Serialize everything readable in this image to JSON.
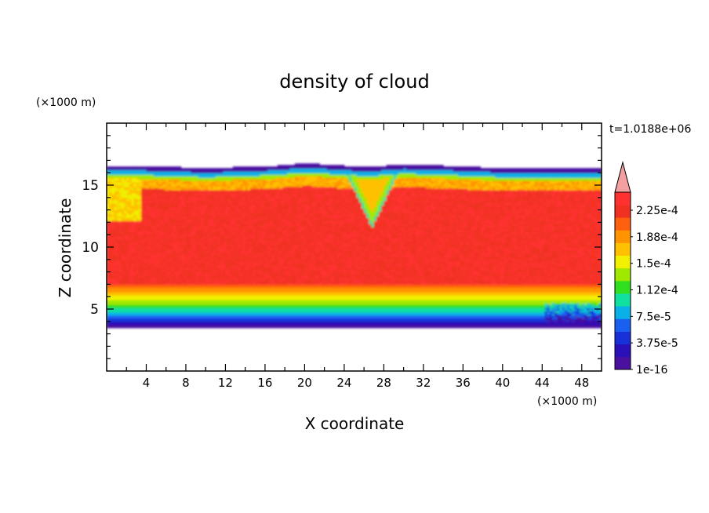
{
  "chart_data": {
    "type": "heatmap",
    "title": "density of cloud",
    "xlabel": "X coordinate",
    "ylabel": "Z coordinate",
    "x_unit": "(×1000 m)",
    "y_unit": "(×1000 m)",
    "time_label": "t=1.0188e+06",
    "xlim": [
      0,
      50
    ],
    "ylim": [
      0,
      20
    ],
    "x_ticks": [
      4,
      8,
      12,
      16,
      20,
      24,
      28,
      32,
      36,
      40,
      44,
      48
    ],
    "y_ticks": [
      5,
      10,
      15
    ],
    "x_minor_step": 2,
    "y_minor_step": 1,
    "colorbar": {
      "labels": [
        "1e-16",
        "3.75e-5",
        "7.5e-5",
        "1.12e-4",
        "1.5e-4",
        "1.88e-4",
        "2.25e-4"
      ],
      "colors": [
        "#4a10a0",
        "#2a10b8",
        "#1830d8",
        "#1a60f0",
        "#0ab0e8",
        "#10e0a0",
        "#30e020",
        "#a0e800",
        "#f0f000",
        "#ffc000",
        "#ff9400",
        "#ff6010",
        "#f03020",
        "#ff3030"
      ],
      "overflow_color": "#f4a0a0"
    },
    "cloud": {
      "base_z": 3.5,
      "top_z_profile": {
        "x": [
          0,
          3,
          10,
          17,
          20,
          24,
          26.5,
          28,
          30,
          34,
          40,
          46,
          50
        ],
        "z": [
          16.5,
          16.5,
          16.3,
          16.5,
          16.7,
          16.5,
          16.4,
          16.5,
          16.6,
          16.5,
          16.3,
          16.3,
          16.3
        ]
      },
      "core_bottom_z": 7.0,
      "core_top_z": 14.0,
      "gap_x_range": [
        24,
        30
      ],
      "left_notch_x_range": [
        0,
        3.5
      ]
    }
  }
}
